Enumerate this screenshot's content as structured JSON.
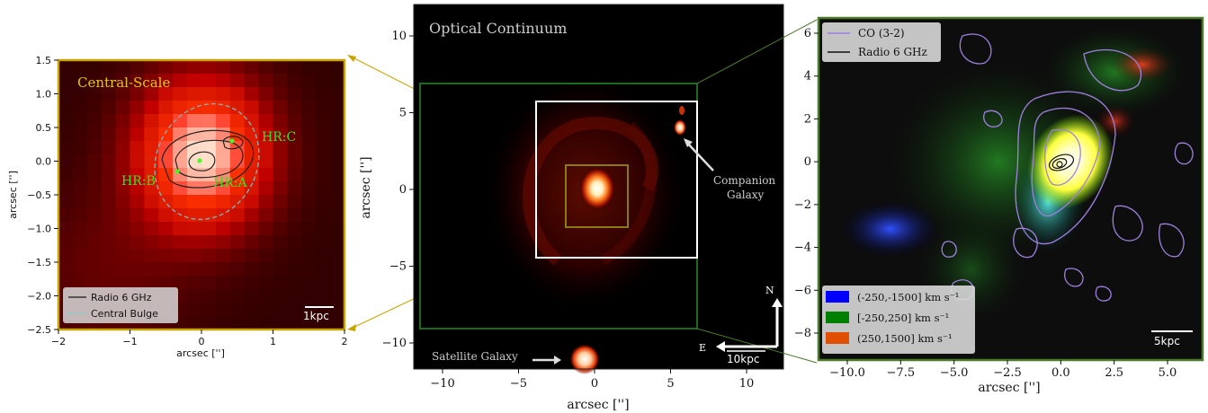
{
  "left_panel": {
    "title": "Central-Scale",
    "xlabel": "arcsec ['']",
    "ylabel": "arcsec ['']",
    "x_ticks": [
      "−2",
      "−1",
      "0",
      "1",
      "2"
    ],
    "y_ticks": [
      "1.5",
      "1.0",
      "0.5",
      "0.0",
      "−0.5",
      "−1.0",
      "−1.5",
      "−2.0",
      "−2.5"
    ],
    "hr_labels": [
      "HR:A",
      "HR:B",
      "HR:C"
    ],
    "legend": [
      "Radio 6 GHz",
      "Central Bulge"
    ],
    "scalebar": "1kpc",
    "frame_color": "#c8a400"
  },
  "center_panel": {
    "title": "Optical Continuum",
    "xlabel": "arcsec ['']",
    "ylabel": "arcsec ['']",
    "x_ticks": [
      "−10",
      "−5",
      "0",
      "5",
      "10"
    ],
    "y_ticks": [
      "10",
      "5",
      "0",
      "−5",
      "−10"
    ],
    "companion": [
      "Companion",
      "Galaxy"
    ],
    "satellite": "Satellite Galaxy",
    "north": "N",
    "east": "E",
    "scalebar": "10kpc"
  },
  "right_panel": {
    "xlabel": "arcsec ['']",
    "x_ticks": [
      "−10.0",
      "−7.5",
      "−5.0",
      "−2.5",
      "0.0",
      "2.5",
      "5.0"
    ],
    "y_ticks": [
      "6",
      "4",
      "2",
      "0",
      "−2",
      "−4",
      "−6",
      "−8"
    ],
    "legend_top": [
      "CO (3-2)",
      "Radio 6 GHz"
    ],
    "legend_bottom": [
      "(-250,-1500] km s⁻¹",
      "[-250,250] km s⁻¹",
      "(250,1500] km s⁻¹"
    ],
    "legend_colors": [
      "#0000ff",
      "#008000",
      "#e05000"
    ],
    "scalebar": "5kpc",
    "frame_color": "#4a7a2a"
  }
}
